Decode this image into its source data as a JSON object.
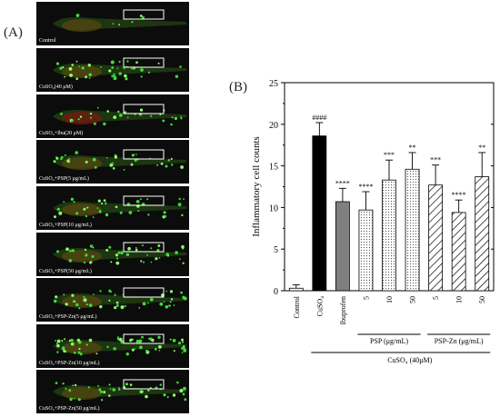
{
  "panel_a": {
    "label": "(A)",
    "captions": [
      "Control",
      "CuSO₄(40 μM)",
      "CuSO₄+Ibu(20 μM)",
      "CuSO₄+PSP(5 μg/mL)",
      "CuSO₄+PSP(10 μg/mL)",
      "CuSO₄+PSP(50 μg/mL)",
      "CuSO₄+PSP-Zn(5 μg/mL)",
      "CuSO₄+PSP-Zn(10 μg/mL)",
      "CuSO₄+PSP-Zn(50 μg/mL)"
    ]
  },
  "chart_data": {
    "type": "bar",
    "panel_label": "(B)",
    "title": "",
    "ylabel": "Inflammatory cell counts",
    "ylim": [
      0,
      25
    ],
    "yticks": [
      "0",
      "5",
      "10",
      "15",
      "20",
      "25"
    ],
    "categories": [
      "Control",
      "CuSO₄",
      "Ibuprofen",
      "5",
      "10",
      "50",
      "5",
      "10",
      "50"
    ],
    "values": [
      0.3,
      18.6,
      10.7,
      9.7,
      13.3,
      14.6,
      12.7,
      9.4,
      13.7
    ],
    "errors": [
      0.4,
      1.6,
      1.6,
      2.2,
      2.4,
      2.0,
      2.4,
      1.5,
      2.9
    ],
    "significance": [
      "",
      "####",
      "****",
      "****",
      "***",
      "**",
      "***",
      "****",
      "**"
    ],
    "bar_styles": [
      "white",
      "black",
      "gray",
      "dots",
      "dots",
      "dots",
      "hatch",
      "hatch",
      "hatch"
    ],
    "group_labels": [
      {
        "label": "PSP (μg/mL)",
        "from": 3,
        "to": 5
      },
      {
        "label": "PSP-Zn (μg/mL)",
        "from": 6,
        "to": 8
      }
    ],
    "bottom_label": "CuSO₄ (40μM)",
    "grid": false,
    "colors": {
      "black": "#000000",
      "gray": "#808080",
      "white": "#ffffff"
    }
  }
}
